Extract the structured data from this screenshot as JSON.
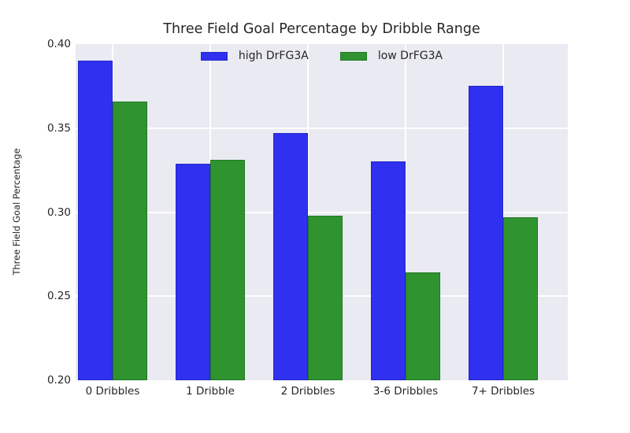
{
  "chart_data": {
    "type": "bar",
    "title": "Three Field Goal Percentage by Dribble Range",
    "xlabel": "",
    "ylabel": "Three Field Goal Percentage",
    "categories": [
      "0 Dribbles",
      "1 Dribble",
      "2 Dribbles",
      "3-6 Dribbles",
      "7+ Dribbles"
    ],
    "series": [
      {
        "name": "high DrFG3A",
        "color": "#2f30f0",
        "edge_color": "#2326c9",
        "values": [
          0.39,
          0.329,
          0.347,
          0.33,
          0.375
        ]
      },
      {
        "name": "low DrFG3A",
        "color": "#2f9330",
        "edge_color": "#1f7a21",
        "values": [
          0.366,
          0.331,
          0.298,
          0.264,
          0.297
        ]
      }
    ],
    "ylim": [
      0.2,
      0.4
    ],
    "yticks": [
      0.4,
      0.35,
      0.3,
      0.25,
      0.2
    ],
    "ytick_labels": [
      "0.40",
      "0.35",
      "0.30",
      "0.25",
      "0.20"
    ],
    "grid": true,
    "grid_color": "#ffffff",
    "plot_background": "#eaeaf2",
    "legend_position": "upper center"
  }
}
